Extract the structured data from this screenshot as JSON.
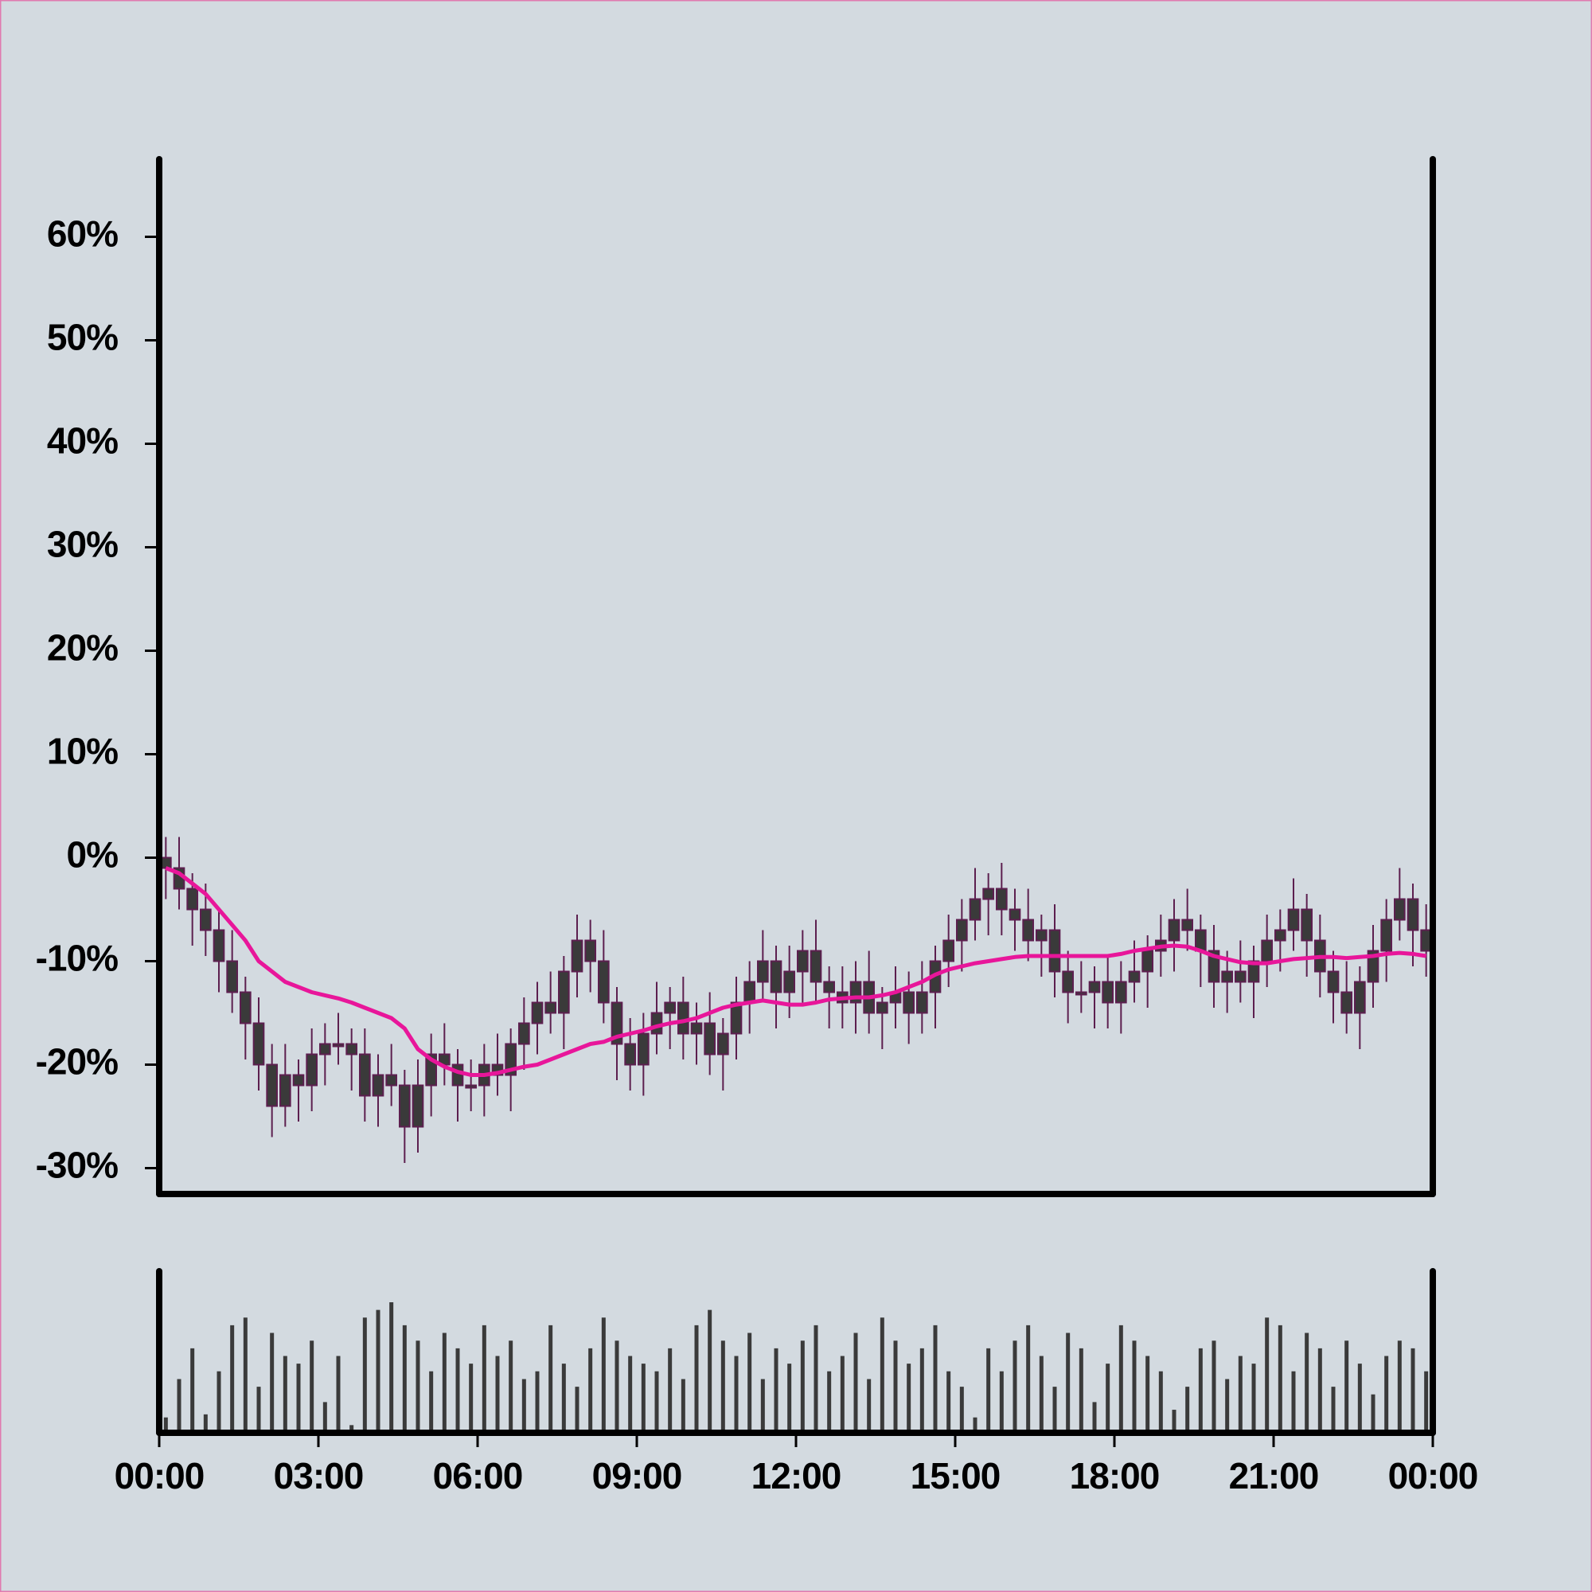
{
  "chart_data": {
    "type": "candlestick",
    "x": [
      0.125,
      0.375,
      0.625,
      0.875,
      1.125,
      1.375,
      1.625,
      1.875,
      2.125,
      2.375,
      2.625,
      2.875,
      3.125,
      3.375,
      3.625,
      3.875,
      4.125,
      4.375,
      4.625,
      4.875,
      5.125,
      5.375,
      5.625,
      5.875,
      6.125,
      6.375,
      6.625,
      6.875,
      7.125,
      7.375,
      7.625,
      7.875,
      8.125,
      8.375,
      8.625,
      8.875,
      9.125,
      9.375,
      9.625,
      9.875,
      10.125,
      10.375,
      10.625,
      10.875,
      11.125,
      11.375,
      11.625,
      11.875,
      12.125,
      12.375,
      12.625,
      12.875,
      13.125,
      13.375,
      13.625,
      13.875,
      14.125,
      14.375,
      14.625,
      14.875,
      15.125,
      15.375,
      15.625,
      15.875,
      16.125,
      16.375,
      16.625,
      16.875,
      17.125,
      17.375,
      17.625,
      17.875,
      18.125,
      18.375,
      18.625,
      18.875,
      19.125,
      19.375,
      19.625,
      19.875,
      20.125,
      20.375,
      20.625,
      20.875,
      21.125,
      21.375,
      21.625,
      21.875,
      22.125,
      22.375,
      22.625,
      22.875,
      23.125,
      23.375,
      23.625,
      23.875
    ],
    "open": [
      0,
      -1,
      -3,
      -5,
      -7,
      -10,
      -13,
      -16,
      -20,
      -24,
      -21,
      -22,
      -19,
      -18,
      -18,
      -19,
      -23,
      -21,
      -22,
      -26,
      -22,
      -19,
      -20,
      -22,
      -22,
      -20,
      -21,
      -18,
      -16,
      -14,
      -15,
      -11,
      -8,
      -10,
      -14,
      -18,
      -20,
      -17,
      -15,
      -14,
      -17,
      -16,
      -19,
      -17,
      -14,
      -12,
      -10,
      -13,
      -11,
      -9,
      -12,
      -13,
      -14,
      -12,
      -15,
      -14,
      -13,
      -15,
      -13,
      -10,
      -8,
      -6,
      -4,
      -3,
      -5,
      -6,
      -8,
      -7,
      -11,
      -13,
      -13,
      -12,
      -14,
      -12,
      -11,
      -9,
      -8,
      -6,
      -7,
      -9,
      -12,
      -11,
      -12,
      -10,
      -8,
      -7,
      -5,
      -8,
      -11,
      -13,
      -15,
      -12,
      -9,
      -6,
      -4,
      -7
    ],
    "high": [
      2,
      2,
      -1.5,
      -2.5,
      -5,
      -7,
      -11.5,
      -13.5,
      -18,
      -18,
      -19.5,
      -16.5,
      -16,
      -15,
      -16.5,
      -16.5,
      -19,
      -18,
      -20.5,
      -19.5,
      -17,
      -16,
      -18.5,
      -19.5,
      -18,
      -17,
      -16.5,
      -13.5,
      -12,
      -11,
      -9.5,
      -5.5,
      -6,
      -7,
      -12.5,
      -15.5,
      -15,
      -12,
      -12.5,
      -11.5,
      -14,
      -13,
      -15.5,
      -11.5,
      -10,
      -7,
      -8.5,
      -8.5,
      -7,
      -6,
      -10.5,
      -10.5,
      -10,
      -9,
      -12.5,
      -10.5,
      -11,
      -10,
      -8.5,
      -5.5,
      -4,
      -1,
      -1.5,
      -0.5,
      -3,
      -3,
      -5.5,
      -4.5,
      -9,
      -10,
      -10.5,
      -9.5,
      -10,
      -8,
      -7.5,
      -5.5,
      -4,
      -3,
      -5.5,
      -6.5,
      -9,
      -8,
      -8.5,
      -5.5,
      -5,
      -2,
      -3.5,
      -5.5,
      -9,
      -10,
      -10.5,
      -6.5,
      -4,
      -1,
      -2.5,
      -4.5
    ],
    "low": [
      -4,
      -5,
      -8.5,
      -9.5,
      -13,
      -15,
      -19.5,
      -22.5,
      -27,
      -26,
      -25.5,
      -24.5,
      -22,
      -20,
      -22.5,
      -25.5,
      -26,
      -24,
      -29.5,
      -28.5,
      -25,
      -22,
      -25.5,
      -24.5,
      -25,
      -23,
      -24.5,
      -20.5,
      -19,
      -17,
      -18.5,
      -13.5,
      -13,
      -16,
      -21.5,
      -22.5,
      -23,
      -19,
      -18.5,
      -19.5,
      -20,
      -21,
      -22.5,
      -19.5,
      -17,
      -14,
      -16.5,
      -15.5,
      -14,
      -14,
      -16.5,
      -16.5,
      -17,
      -17,
      -18.5,
      -16.5,
      -18,
      -17,
      -16.5,
      -12.5,
      -11,
      -8,
      -7.5,
      -7.5,
      -9,
      -10,
      -11.5,
      -13.5,
      -16,
      -15,
      -16.5,
      -16.5,
      -17,
      -14,
      -14.5,
      -11.5,
      -11,
      -9,
      -12.5,
      -14.5,
      -15,
      -14,
      -15.5,
      -12.5,
      -11,
      -9,
      -11.5,
      -13.5,
      -16,
      -17,
      -18.5,
      -14.5,
      -12,
      -8,
      -10.5,
      -11.5
    ],
    "close": [
      -1,
      -3,
      -5,
      -7,
      -10,
      -13,
      -16,
      -20,
      -24,
      -21,
      -22,
      -19,
      -18,
      -18,
      -19,
      -23,
      -21,
      -22,
      -26,
      -22,
      -19,
      -20,
      -22,
      -22,
      -20,
      -21,
      -18,
      -16,
      -14,
      -15,
      -11,
      -8,
      -10,
      -14,
      -18,
      -20,
      -17,
      -15,
      -14,
      -17,
      -16,
      -19,
      -17,
      -14,
      -12,
      -10,
      -13,
      -11,
      -9,
      -12,
      -13,
      -14,
      -12,
      -15,
      -14,
      -13,
      -15,
      -13,
      -10,
      -8,
      -6,
      -4,
      -3,
      -5,
      -6,
      -8,
      -7,
      -11,
      -13,
      -13,
      -12,
      -14,
      -12,
      -11,
      -9,
      -8,
      -6,
      -7,
      -9,
      -12,
      -11,
      -12,
      -10,
      -8,
      -7,
      -5,
      -8,
      -11,
      -13,
      -15,
      -12,
      -9,
      -6,
      -4,
      -7,
      -9
    ],
    "body_color": "#3a3a3a",
    "wick_color": "#5c1f4f",
    "ma": {
      "color": "#e8169a",
      "values": [
        -1,
        -1.5,
        -2.5,
        -3.5,
        -5,
        -6.5,
        -8,
        -10,
        -11,
        -12,
        -12.5,
        -13,
        -13.3,
        -13.6,
        -14,
        -14.5,
        -15,
        -15.5,
        -16.5,
        -18.5,
        -19.5,
        -20.2,
        -20.7,
        -21,
        -21,
        -20.8,
        -20.5,
        -20.2,
        -20,
        -19.5,
        -19,
        -18.5,
        -18,
        -17.8,
        -17.3,
        -17,
        -16.7,
        -16.3,
        -16,
        -15.8,
        -15.5,
        -15,
        -14.5,
        -14.2,
        -14,
        -13.8,
        -14,
        -14.2,
        -14.2,
        -14,
        -13.7,
        -13.6,
        -13.5,
        -13.5,
        -13.3,
        -13,
        -12.5,
        -12,
        -11.3,
        -10.8,
        -10.5,
        -10.2,
        -10,
        -9.8,
        -9.6,
        -9.5,
        -9.5,
        -9.5,
        -9.5,
        -9.5,
        -9.5,
        -9.5,
        -9.3,
        -9,
        -8.8,
        -8.6,
        -8.5,
        -8.6,
        -9,
        -9.5,
        -9.8,
        -10.1,
        -10.2,
        -10.2,
        -10,
        -9.8,
        -9.7,
        -9.6,
        -9.6,
        -9.7,
        -9.6,
        -9.5,
        -9.3,
        -9.2,
        -9.3,
        -9.5
      ]
    },
    "volume": {
      "color": "#3a3a3a",
      "ylim": [
        0,
        100
      ],
      "values": [
        10,
        35,
        55,
        12,
        40,
        70,
        75,
        30,
        65,
        50,
        45,
        60,
        20,
        50,
        5,
        75,
        80,
        85,
        70,
        60,
        40,
        65,
        55,
        45,
        70,
        50,
        60,
        35,
        40,
        70,
        45,
        30,
        55,
        75,
        60,
        50,
        45,
        40,
        55,
        35,
        70,
        80,
        60,
        50,
        65,
        35,
        55,
        45,
        60,
        70,
        40,
        50,
        65,
        35,
        75,
        60,
        45,
        55,
        70,
        40,
        30,
        10,
        55,
        40,
        60,
        70,
        50,
        30,
        65,
        55,
        20,
        45,
        70,
        60,
        50,
        40,
        15,
        30,
        55,
        60,
        35,
        50,
        45,
        75,
        70,
        40,
        65,
        55,
        30,
        60,
        45,
        25,
        50,
        60,
        55,
        40
      ]
    },
    "xlim": [
      0,
      24
    ],
    "xticks": [
      {
        "value": 0,
        "label": "00:00"
      },
      {
        "value": 3,
        "label": "03:00"
      },
      {
        "value": 6,
        "label": "06:00"
      },
      {
        "value": 9,
        "label": "09:00"
      },
      {
        "value": 12,
        "label": "12:00"
      },
      {
        "value": 15,
        "label": "15:00"
      },
      {
        "value": 18,
        "label": "18:00"
      },
      {
        "value": 21,
        "label": "21:00"
      },
      {
        "value": 24,
        "label": "00:00"
      }
    ],
    "ylim": [
      -32.5,
      67.5
    ],
    "yticks": [
      {
        "value": -30,
        "label": "-30%"
      },
      {
        "value": -20,
        "label": "-20%"
      },
      {
        "value": -10,
        "label": "-10%"
      },
      {
        "value": 0,
        "label": "0%"
      },
      {
        "value": 10,
        "label": "10%"
      },
      {
        "value": 20,
        "label": "20%"
      },
      {
        "value": 30,
        "label": "30%"
      },
      {
        "value": 40,
        "label": "40%"
      },
      {
        "value": 50,
        "label": "50%"
      },
      {
        "value": 60,
        "label": "60%"
      }
    ]
  }
}
